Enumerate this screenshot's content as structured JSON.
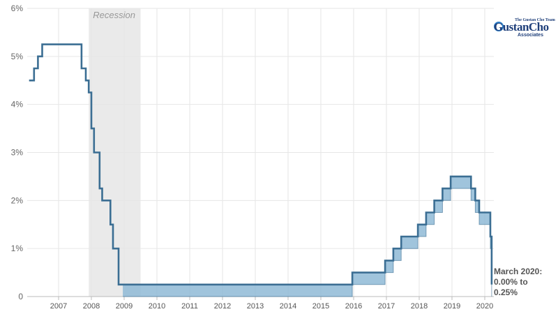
{
  "logo": {
    "small_text": "The Gustan Cho Team",
    "main_text": "GustanCho",
    "sub_text": "Associates"
  },
  "colors": {
    "upper_line": "#3b6e93",
    "band_fill": "#8fbad6",
    "band_stroke": "#3b6e93",
    "recession_fill": "#eaeaea",
    "grid": "#e6e6e6"
  },
  "chart_data": {
    "type": "line",
    "title": "",
    "xlabel": "",
    "ylabel": "",
    "xlim": [
      2006.1,
      2020.15
    ],
    "ylim": [
      0,
      6
    ],
    "yticks": [
      0,
      1,
      2,
      3,
      4,
      5,
      6
    ],
    "ytick_labels": [
      "0",
      "1%",
      "2%",
      "3%",
      "4%",
      "5%",
      "6%"
    ],
    "xticks": [
      2007,
      2008,
      2009,
      2010,
      2011,
      2012,
      2013,
      2014,
      2015,
      2016,
      2017,
      2018,
      2019,
      2020
    ],
    "xtick_labels": [
      "2007",
      "2008",
      "2009",
      "2010",
      "2011",
      "2012",
      "2013",
      "2014",
      "2015",
      "2016",
      "2017",
      "2018",
      "2019",
      "2020"
    ],
    "grid": "vertical and horizontal",
    "recession": {
      "label": "Recession",
      "start": 2007.92,
      "end": 2009.5
    },
    "annotation": {
      "lines": [
        "March 2020:",
        "0.00% to",
        "0.25%"
      ],
      "x": 2020.17,
      "y": 0.25
    },
    "series": [
      {
        "name": "upper bound",
        "x": [
          2006.1,
          2006.25,
          2006.25,
          2006.37,
          2006.37,
          2006.5,
          2006.5,
          2007.7,
          2007.7,
          2007.83,
          2007.83,
          2007.92,
          2007.92,
          2008.0,
          2008.0,
          2008.08,
          2008.08,
          2008.25,
          2008.25,
          2008.33,
          2008.33,
          2008.58,
          2008.58,
          2008.66,
          2008.66,
          2008.83,
          2008.83,
          2008.96,
          2008.96,
          2015.96,
          2015.96,
          2016.96,
          2016.96,
          2017.21,
          2017.21,
          2017.45,
          2017.45,
          2017.96,
          2017.96,
          2018.21,
          2018.21,
          2018.46,
          2018.46,
          2018.71,
          2018.71,
          2018.96,
          2018.96,
          2019.58,
          2019.58,
          2019.71,
          2019.71,
          2019.83,
          2019.83,
          2020.17,
          2020.17,
          2020.21,
          2020.21
        ],
        "y": [
          4.5,
          4.5,
          4.75,
          4.75,
          5.0,
          5.0,
          5.25,
          5.25,
          4.75,
          4.75,
          4.5,
          4.5,
          4.25,
          4.25,
          3.5,
          3.5,
          3.0,
          3.0,
          2.25,
          2.25,
          2.0,
          2.0,
          1.5,
          1.5,
          1.0,
          1.0,
          0.25,
          0.25,
          0.25,
          0.25,
          0.5,
          0.5,
          0.75,
          0.75,
          1.0,
          1.0,
          1.25,
          1.25,
          1.5,
          1.5,
          1.75,
          1.75,
          2.0,
          2.0,
          2.25,
          2.25,
          2.5,
          2.5,
          2.25,
          2.25,
          2.0,
          2.0,
          1.75,
          1.75,
          1.25,
          1.25,
          0.25
        ]
      },
      {
        "name": "lower bound",
        "x": [
          2008.96,
          2015.96,
          2015.96,
          2016.96,
          2016.96,
          2017.21,
          2017.21,
          2017.45,
          2017.45,
          2017.96,
          2017.96,
          2018.21,
          2018.21,
          2018.46,
          2018.46,
          2018.71,
          2018.71,
          2018.96,
          2018.96,
          2019.58,
          2019.58,
          2019.71,
          2019.71,
          2019.83,
          2019.83,
          2020.17,
          2020.17,
          2020.21,
          2020.21
        ],
        "y": [
          0.0,
          0.0,
          0.25,
          0.25,
          0.5,
          0.5,
          0.75,
          0.75,
          1.0,
          1.0,
          1.25,
          1.25,
          1.5,
          1.5,
          1.75,
          1.75,
          2.0,
          2.0,
          2.25,
          2.25,
          2.0,
          2.0,
          1.75,
          1.75,
          1.5,
          1.5,
          1.0,
          1.0,
          0.0
        ]
      }
    ]
  }
}
